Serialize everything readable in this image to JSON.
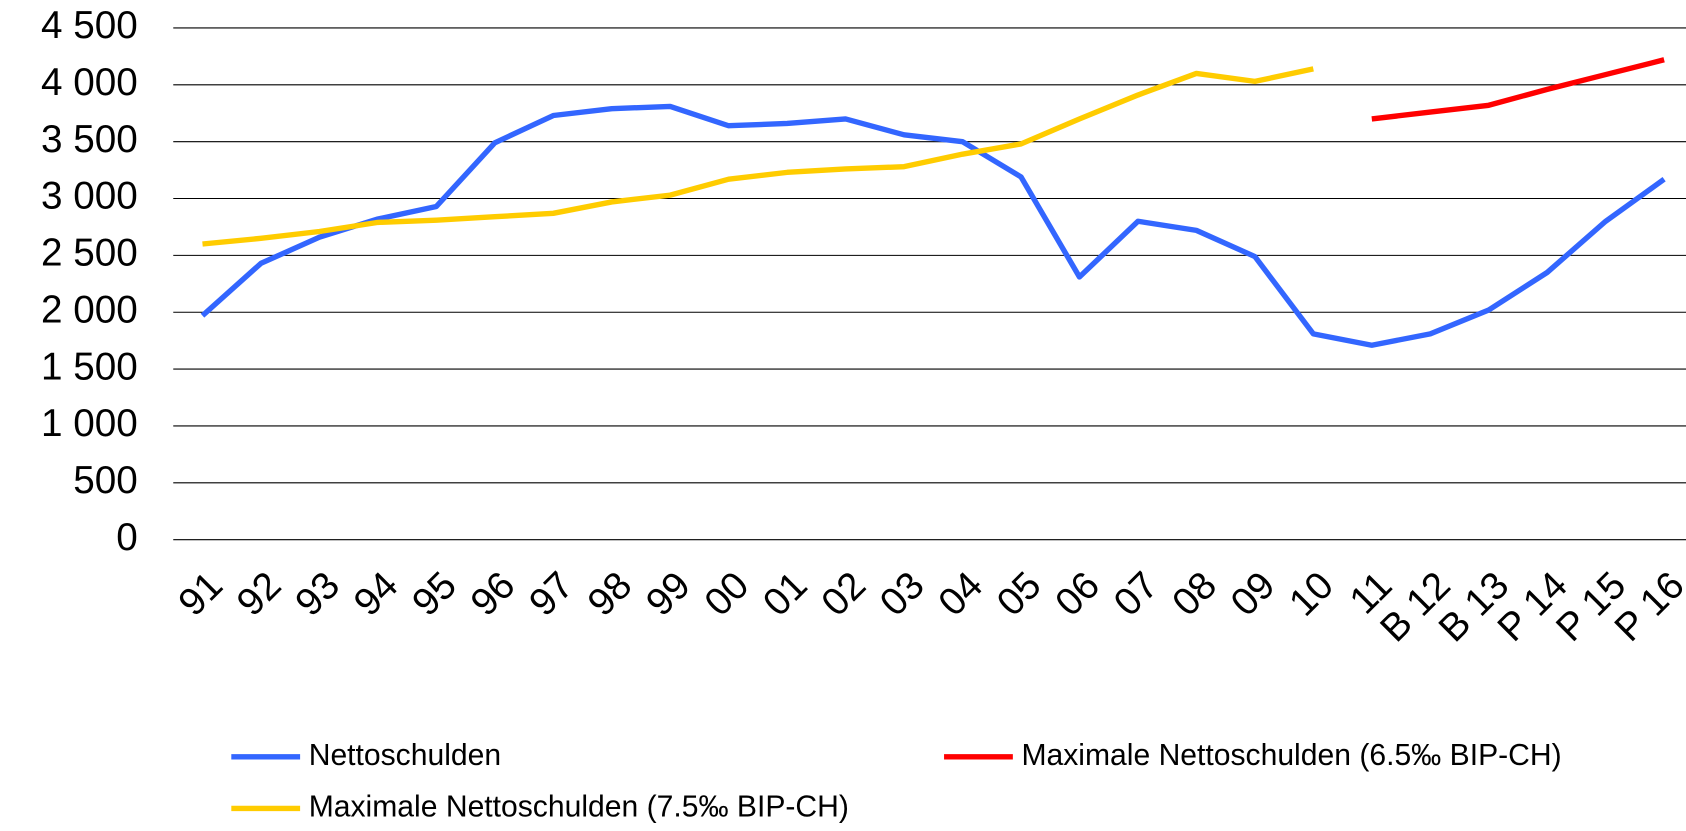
{
  "chart_data": {
    "type": "line",
    "categories": [
      "91",
      "92",
      "93",
      "94",
      "95",
      "96",
      "97",
      "98",
      "99",
      "00",
      "01",
      "02",
      "03",
      "04",
      "05",
      "06",
      "07",
      "08",
      "09",
      "10",
      "11",
      "B 12",
      "B 13",
      "P 14",
      "P 15",
      "P 16"
    ],
    "series": [
      {
        "name": "Nettoschulden",
        "color": "#3366ff",
        "values": [
          1970,
          2430,
          2660,
          2820,
          2930,
          3490,
          3730,
          3790,
          3810,
          3640,
          3660,
          3700,
          3560,
          3500,
          3190,
          2310,
          2800,
          2720,
          2490,
          1810,
          1710,
          1810,
          2020,
          2350,
          2800,
          3170
        ]
      },
      {
        "name": "Maximale Nettoschulden (6.5‰ BIP-CH)",
        "color": "#ff0000",
        "values": [
          null,
          null,
          null,
          null,
          null,
          null,
          null,
          null,
          null,
          null,
          null,
          null,
          null,
          null,
          null,
          null,
          null,
          null,
          null,
          null,
          3700,
          3760,
          3820,
          3960,
          4090,
          4220
        ]
      },
      {
        "name": "Maximale Nettoschulden (7.5‰ BIP-CH)",
        "color": "#ffcc00",
        "values": [
          2600,
          2650,
          2710,
          2790,
          2810,
          2840,
          2870,
          2970,
          3030,
          3170,
          3230,
          3260,
          3280,
          3390,
          3480,
          3700,
          3910,
          4100,
          4030,
          4140,
          null,
          null,
          null,
          null,
          null,
          null
        ]
      }
    ],
    "ylim": [
      0,
      4500
    ],
    "yticks": [
      0,
      500,
      {
        "value": 1000,
        "label": "1 000"
      },
      {
        "value": 1500,
        "label": "1 500"
      },
      {
        "value": 2000,
        "label": "2 000"
      },
      {
        "value": 2500,
        "label": "2 500"
      },
      {
        "value": 3000,
        "label": "3 000"
      },
      {
        "value": 3500,
        "label": "3 500"
      },
      {
        "value": 4000,
        "label": "4 000"
      },
      {
        "value": 4500,
        "label": "4 500"
      }
    ],
    "grid": true,
    "legend": "bottom"
  }
}
